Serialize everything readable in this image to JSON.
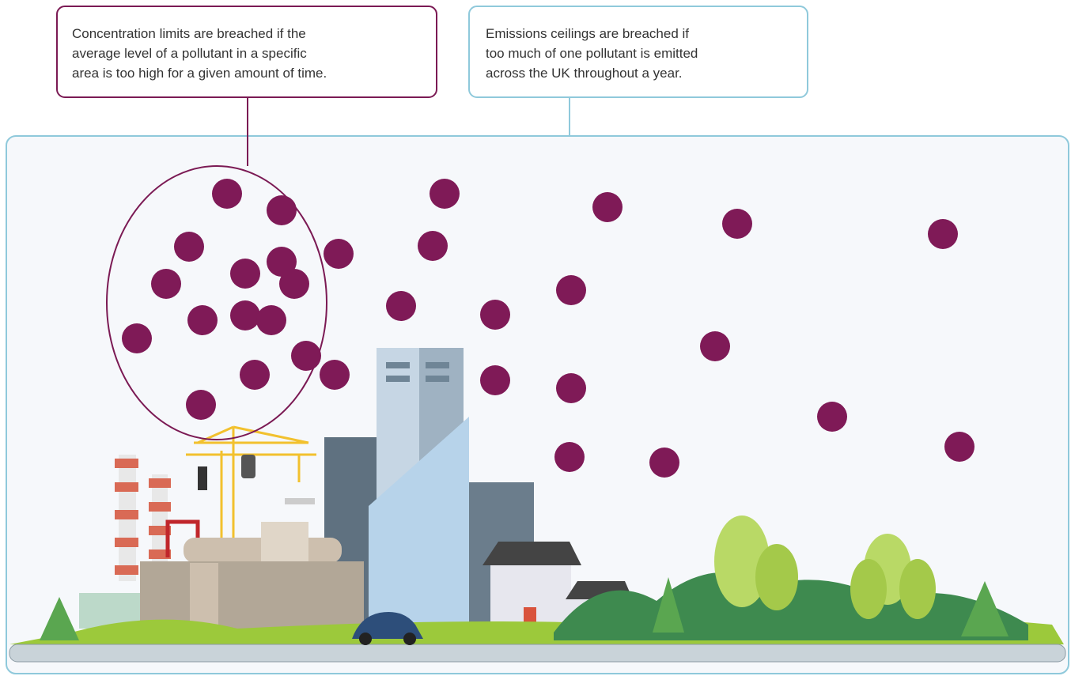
{
  "callouts": [
    {
      "lines": [
        "Concentration limits are breached if the",
        "average level of a pollutant in a specific",
        "area is too high for a given amount of time."
      ]
    },
    {
      "lines": [
        "Emissions ceilings are breached if",
        "too much of one pollutant is emitted",
        "across the UK throughout a year."
      ]
    }
  ]
}
